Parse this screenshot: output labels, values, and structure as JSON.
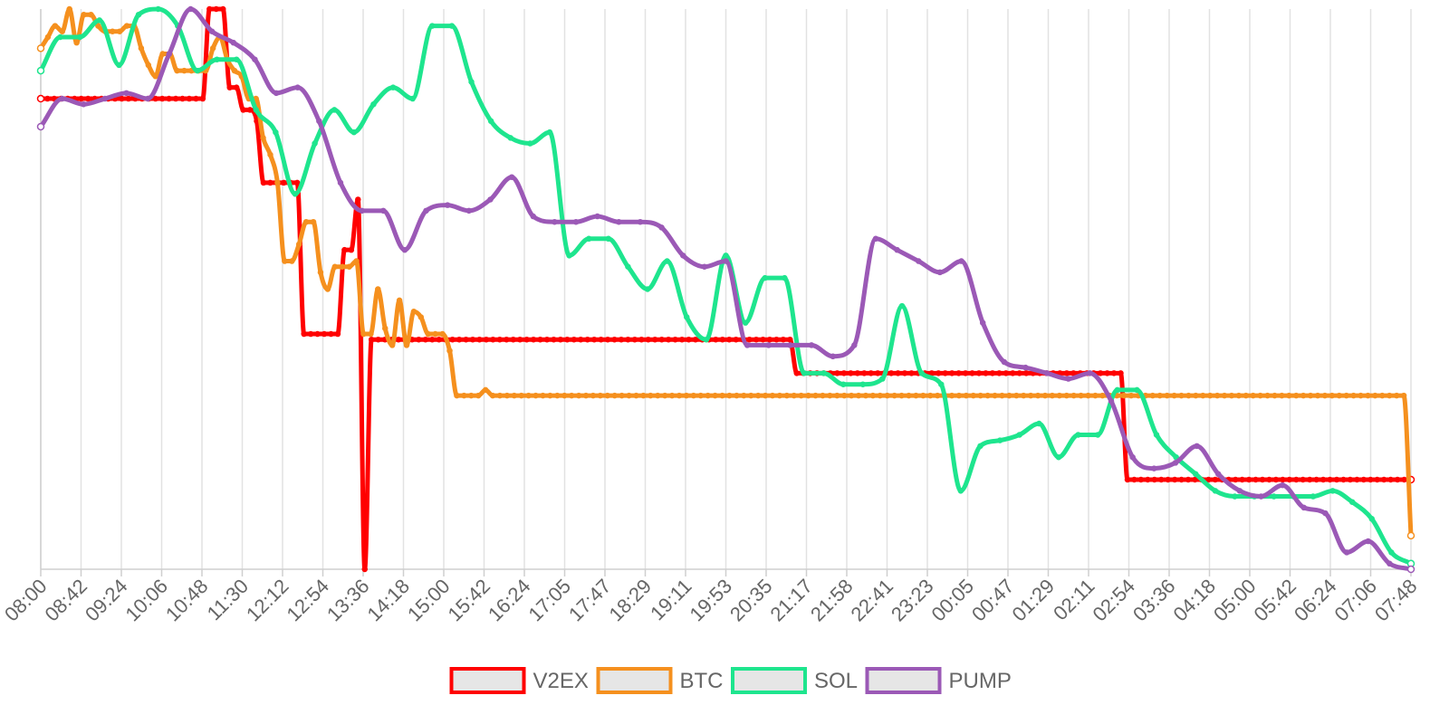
{
  "chart_data": {
    "type": "line",
    "title": "",
    "xlabel": "",
    "ylabel": "",
    "grid": "vertical",
    "legend_position": "bottom",
    "ylim": [
      0,
      100
    ],
    "x_tick_labels": [
      "08:00",
      "08:42",
      "09:24",
      "10:06",
      "10:48",
      "11:30",
      "12:12",
      "12:54",
      "13:36",
      "14:18",
      "15:00",
      "15:42",
      "16:24",
      "17:05",
      "17:47",
      "18:29",
      "19:11",
      "19:53",
      "20:35",
      "21:17",
      "21:58",
      "22:41",
      "23:23",
      "00:05",
      "00:47",
      "01:29",
      "02:11",
      "02:54",
      "03:36",
      "04:18",
      "05:00",
      "05:42",
      "06:24",
      "07:06",
      "07:48"
    ],
    "series": [
      {
        "name": "V2EX",
        "color": "#ff0000",
        "values": [
          84,
          84,
          84,
          84,
          84,
          84,
          84,
          84,
          84,
          84,
          84,
          84,
          84,
          84,
          84,
          84,
          84,
          84,
          84,
          84,
          84,
          84,
          84,
          84,
          84,
          100,
          100,
          100,
          86,
          86,
          82,
          82,
          80,
          69,
          69,
          69,
          69,
          69,
          69,
          42,
          42,
          42,
          42,
          42,
          42,
          57,
          57,
          66,
          0,
          41,
          41,
          41,
          41,
          41,
          41,
          41,
          41,
          41,
          41,
          41,
          41,
          41,
          41,
          41,
          41,
          41,
          41,
          41,
          41,
          41,
          41,
          41,
          41,
          41,
          41,
          41,
          41,
          41,
          41,
          41,
          41,
          41,
          41,
          41,
          41,
          41,
          41,
          41,
          41,
          41,
          41,
          41,
          41,
          41,
          41,
          41,
          41,
          41,
          41,
          41,
          41,
          41,
          41,
          41,
          41,
          41,
          41,
          41,
          41,
          41,
          41,
          41,
          35,
          35,
          35,
          35,
          35,
          35,
          35,
          35,
          35,
          35,
          35,
          35,
          35,
          35,
          35,
          35,
          35,
          35,
          35,
          35,
          35,
          35,
          35,
          35,
          35,
          35,
          35,
          35,
          35,
          35,
          35,
          35,
          35,
          35,
          35,
          35,
          35,
          35,
          35,
          35,
          35,
          35,
          35,
          35,
          35,
          35,
          35,
          35,
          35,
          16,
          16,
          16,
          16,
          16,
          16,
          16,
          16,
          16,
          16,
          16,
          16,
          16,
          16,
          16,
          16,
          16,
          16,
          16,
          16,
          16,
          16,
          16,
          16,
          16,
          16,
          16,
          16,
          16,
          16,
          16,
          16,
          16,
          16,
          16,
          16,
          16,
          16,
          16,
          16,
          16,
          16,
          16
        ]
      },
      {
        "name": "BTC",
        "color": "#f5901e",
        "values": [
          93,
          95,
          97,
          96,
          100,
          94,
          99,
          99,
          97,
          96,
          96,
          96,
          97,
          97,
          93,
          90,
          88,
          92,
          92,
          89,
          89,
          89,
          89,
          89,
          93,
          95,
          91,
          89,
          88,
          84,
          84,
          77,
          74,
          69,
          55,
          55,
          58,
          62,
          62,
          53,
          50,
          54,
          54,
          54,
          55,
          42,
          42,
          50,
          43,
          40,
          48,
          40,
          46,
          45,
          42,
          42,
          42,
          39,
          31,
          31,
          31,
          31,
          32,
          31,
          31,
          31,
          31,
          31,
          31,
          31,
          31,
          31,
          31,
          31,
          31,
          31,
          31,
          31,
          31,
          31,
          31,
          31,
          31,
          31,
          31,
          31,
          31,
          31,
          31,
          31,
          31,
          31,
          31,
          31,
          31,
          31,
          31,
          31,
          31,
          31,
          31,
          31,
          31,
          31,
          31,
          31,
          31,
          31,
          31,
          31,
          31,
          31,
          31,
          31,
          31,
          31,
          31,
          31,
          31,
          31,
          31,
          31,
          31,
          31,
          31,
          31,
          31,
          31,
          31,
          31,
          31,
          31,
          31,
          31,
          31,
          31,
          31,
          31,
          31,
          31,
          31,
          31,
          31,
          31,
          31,
          31,
          31,
          31,
          31,
          31,
          31,
          31,
          31,
          31,
          31,
          31,
          31,
          31,
          31,
          31,
          31,
          31,
          31,
          31,
          31,
          31,
          31,
          31,
          31,
          31,
          31,
          31,
          31,
          31,
          31,
          31,
          31,
          31,
          31,
          31,
          31,
          31,
          31,
          31,
          31,
          31,
          31,
          31,
          31,
          31,
          31,
          6
        ]
      },
      {
        "name": "SOL",
        "color": "#1ee58e",
        "values": [
          89,
          95,
          95,
          98,
          90,
          99,
          100,
          97,
          89,
          91,
          91,
          82,
          78,
          67,
          76,
          82,
          78,
          83,
          86,
          84,
          97,
          97,
          87,
          80,
          77,
          76,
          78,
          56,
          59,
          59,
          54,
          50,
          55,
          45,
          41,
          56,
          44,
          52,
          52,
          35,
          35,
          33,
          33,
          34,
          47,
          35,
          33,
          14,
          22,
          23,
          24,
          26,
          20,
          24,
          24,
          32,
          32,
          24,
          20,
          17,
          14,
          13,
          13,
          13,
          13,
          13,
          14,
          12,
          9,
          3,
          1
        ]
      },
      {
        "name": "PUMP",
        "color": "#9b59b6",
        "values": [
          79,
          84,
          83,
          84,
          85,
          84,
          92,
          100,
          96,
          94,
          91,
          85,
          86,
          80,
          69,
          64,
          64,
          57,
          64,
          65,
          64,
          66,
          70,
          63,
          62,
          62,
          63,
          62,
          62,
          61,
          56,
          54,
          55,
          40,
          40,
          40,
          40,
          38,
          40,
          59,
          57,
          55,
          53,
          55,
          44,
          37,
          36,
          35,
          34,
          35,
          30,
          20,
          18,
          19,
          22,
          17,
          14,
          13,
          15,
          11,
          10,
          3,
          5,
          1,
          0
        ]
      }
    ]
  }
}
